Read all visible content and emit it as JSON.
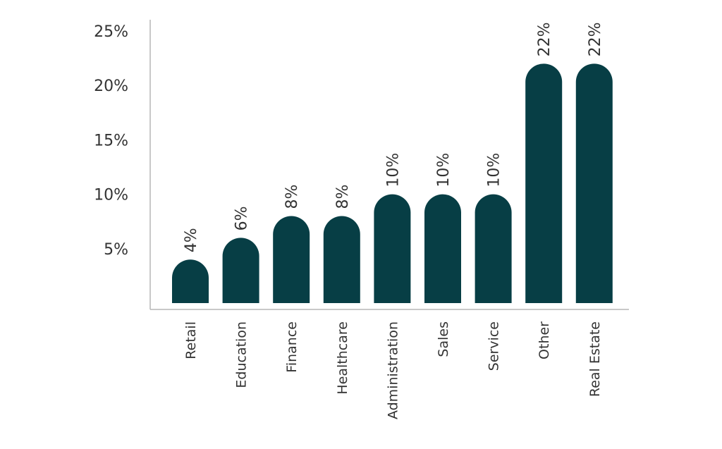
{
  "chart_data": {
    "type": "bar",
    "title": "",
    "xlabel": "",
    "ylabel": "",
    "categories": [
      "Retail",
      "Education",
      "Finance",
      "Healthcare",
      "Administration",
      "Sales",
      "Service",
      "Other",
      "Real Estate"
    ],
    "values": [
      4,
      6,
      8,
      8,
      10,
      10,
      10,
      22,
      22
    ],
    "data_labels": [
      "4%",
      "6%",
      "8%",
      "8%",
      "10%",
      "10%",
      "10%",
      "22%",
      "22%"
    ],
    "yticks": [
      5,
      10,
      15,
      20,
      25
    ],
    "ytick_labels": [
      "5%",
      "10%",
      "15%",
      "20%",
      "25%"
    ],
    "ylim": [
      0,
      25
    ],
    "grid": false,
    "legend": "none",
    "bar_color": "#073e45",
    "bar_shape": "rounded-top"
  }
}
